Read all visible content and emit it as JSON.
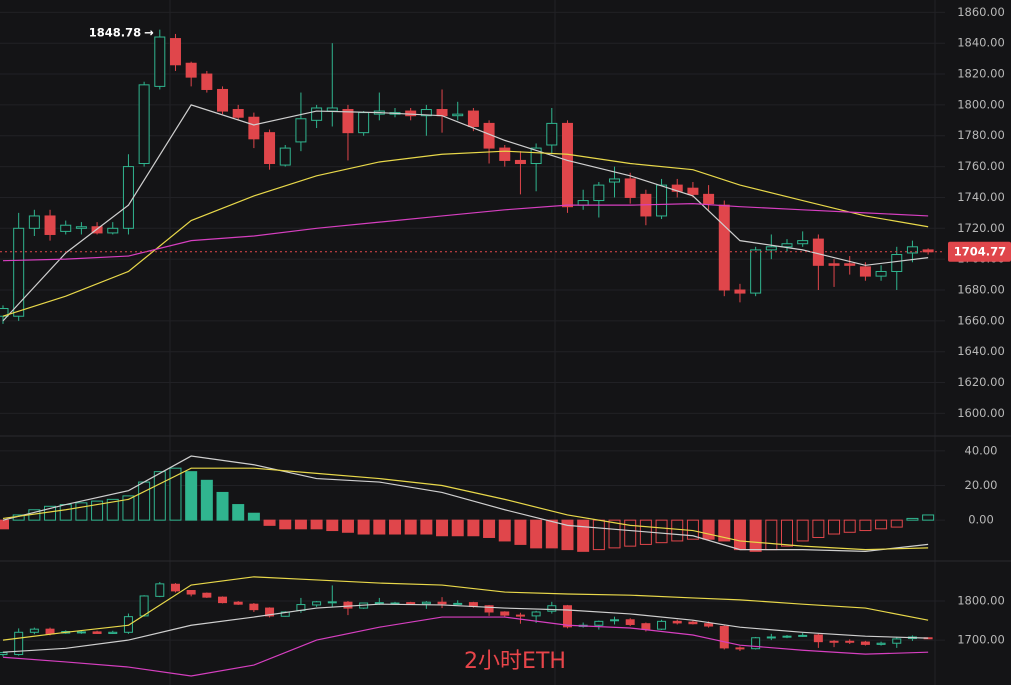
{
  "chart_data": [
    {
      "type": "candlestick",
      "title": "2小时ETH",
      "open": [
        1663,
        1663,
        1720,
        1728,
        1718,
        1720,
        1721,
        1717,
        1720,
        1762,
        1812,
        1843,
        1827,
        1820,
        1810,
        1797,
        1792,
        1782,
        1761,
        1776,
        1790,
        1796,
        1797,
        1782,
        1794,
        1794,
        1796,
        1793,
        1797,
        1793,
        1796,
        1788,
        1772,
        1764,
        1762,
        1774,
        1788,
        1735,
        1738,
        1750,
        1752,
        1742,
        1728,
        1748,
        1746,
        1742,
        1735,
        1680,
        1678,
        1706,
        1708,
        1710,
        1713,
        1697,
        1697,
        1695,
        1689,
        1692,
        1704,
        1706
      ],
      "high": [
        1670,
        1730,
        1732,
        1732,
        1725,
        1724,
        1724,
        1724,
        1768,
        1815,
        1848.78,
        1846,
        1828,
        1822,
        1812,
        1800,
        1795,
        1784,
        1774,
        1808,
        1800,
        1840,
        1800,
        1796,
        1808,
        1798,
        1798,
        1800,
        1810,
        1802,
        1798,
        1790,
        1774,
        1770,
        1775,
        1798,
        1790,
        1745,
        1750,
        1760,
        1756,
        1745,
        1752,
        1752,
        1750,
        1748,
        1738,
        1684,
        1708,
        1716,
        1713,
        1718,
        1716,
        1700,
        1702,
        1698,
        1696,
        1708,
        1712,
        1707
      ],
      "low": [
        1658,
        1660,
        1715,
        1712,
        1716,
        1716,
        1716,
        1716,
        1716,
        1760,
        1810,
        1822,
        1812,
        1808,
        1794,
        1790,
        1772,
        1758,
        1760,
        1770,
        1785,
        1786,
        1764,
        1780,
        1790,
        1792,
        1790,
        1780,
        1782,
        1790,
        1783,
        1762,
        1760,
        1742,
        1744,
        1768,
        1730,
        1732,
        1727,
        1740,
        1736,
        1722,
        1726,
        1740,
        1740,
        1732,
        1676,
        1672,
        1676,
        1700,
        1705,
        1708,
        1680,
        1682,
        1690,
        1686,
        1686,
        1680,
        1698,
        1703
      ],
      "close": [
        1668,
        1720,
        1728,
        1716,
        1722,
        1721,
        1717,
        1720,
        1760,
        1813,
        1844,
        1826,
        1818,
        1810,
        1796,
        1792,
        1778,
        1762,
        1772,
        1791,
        1798,
        1798,
        1782,
        1795,
        1796,
        1795,
        1793,
        1797,
        1793,
        1794,
        1786,
        1772,
        1764,
        1762,
        1772,
        1788,
        1734,
        1738,
        1748,
        1752,
        1740,
        1728,
        1748,
        1744,
        1742,
        1736,
        1680,
        1678,
        1706,
        1708,
        1710,
        1712,
        1696,
        1696,
        1696,
        1689,
        1692,
        1703,
        1708,
        1704.77
      ],
      "up_color": "#30b58f",
      "down_color": "#e0464b",
      "series": [
        {
          "color": "#cfcfcf",
          "x": [
            0,
            4,
            8,
            12,
            16,
            20,
            24,
            28,
            32,
            36,
            40,
            44,
            47,
            51,
            55,
            59
          ],
          "values": [
            1660,
            1704,
            1735,
            1800,
            1787,
            1796,
            1795,
            1793,
            1777,
            1764,
            1754,
            1741,
            1712,
            1706,
            1696,
            1701
          ]
        },
        {
          "color": "#e8d84a",
          "x": [
            0,
            4,
            8,
            12,
            16,
            20,
            24,
            28,
            32,
            36,
            40,
            44,
            47,
            51,
            55,
            59
          ],
          "values": [
            1663,
            1676,
            1692,
            1725,
            1741,
            1754,
            1763,
            1768,
            1770,
            1768,
            1762,
            1758,
            1748,
            1738,
            1728,
            1721
          ]
        },
        {
          "color": "#d63fc0",
          "x": [
            0,
            4,
            8,
            12,
            16,
            20,
            24,
            28,
            32,
            36,
            40,
            44,
            47,
            51,
            55,
            59
          ],
          "values": [
            1699,
            1700,
            1702,
            1712,
            1715,
            1720,
            1724,
            1728,
            1732,
            1735,
            1735,
            1736,
            1734,
            1732,
            1730,
            1728
          ]
        }
      ],
      "max_price": 1848.78,
      "last_price": 1704.77,
      "ylim": [
        1586,
        1868
      ],
      "yticks": [
        {
          "value": 1860,
          "label": "1860.00"
        },
        {
          "value": 1840,
          "label": "1840.00"
        },
        {
          "value": 1820,
          "label": "1820.00"
        },
        {
          "value": 1800,
          "label": "1800.00"
        },
        {
          "value": 1780,
          "label": "1780.00"
        },
        {
          "value": 1760,
          "label": "1760.00"
        },
        {
          "value": 1740,
          "label": "1740.00"
        },
        {
          "value": 1720,
          "label": "1720.00"
        },
        {
          "value": 1700,
          "label": "1700.00"
        },
        {
          "value": 1680,
          "label": "1680.00"
        },
        {
          "value": 1660,
          "label": "1660.00"
        },
        {
          "value": 1640,
          "label": "1640.00"
        },
        {
          "value": 1620,
          "label": "1620.00"
        },
        {
          "value": 1600,
          "label": "1600.00"
        }
      ],
      "grid": true
    },
    {
      "type": "bar",
      "values": [
        -5,
        3,
        6,
        8,
        9,
        10,
        11,
        12,
        14,
        22,
        28,
        30,
        28,
        23,
        16,
        9,
        4,
        -3,
        -5,
        -5,
        -5,
        -6,
        -7,
        -8,
        -8,
        -8,
        -8,
        -8,
        -9,
        -9,
        -9,
        -10,
        -12,
        -14,
        -16,
        -16,
        -17,
        -18,
        -17,
        -16,
        -15,
        -14,
        -13,
        -12,
        -11,
        -11,
        -12,
        -17,
        -18,
        -17,
        -15,
        -12,
        -10,
        -8,
        -7,
        -6,
        -5,
        -4,
        1,
        3
      ],
      "up_color": "#30b58f",
      "down_color": "#e0464b",
      "series": [
        {
          "color": "#cfcfcf",
          "x": [
            0,
            4,
            8,
            12,
            16,
            20,
            24,
            28,
            32,
            36,
            40,
            44,
            47,
            51,
            55,
            59
          ],
          "values": [
            0,
            9,
            17,
            37,
            32,
            24,
            22,
            16,
            6,
            -3,
            -6,
            -9,
            -17,
            -17,
            -18,
            -14
          ]
        },
        {
          "color": "#e8d84a",
          "x": [
            0,
            4,
            8,
            12,
            16,
            20,
            24,
            28,
            32,
            36,
            40,
            44,
            47,
            51,
            55,
            59
          ],
          "values": [
            1,
            6,
            12,
            30,
            30,
            27,
            24,
            20,
            12,
            3,
            -3,
            -6,
            -12,
            -15,
            -17,
            -16
          ]
        }
      ],
      "ylim": [
        -23,
        48
      ],
      "yticks": [
        {
          "value": 40,
          "label": "40.00"
        },
        {
          "value": 20,
          "label": "20.00"
        },
        {
          "value": 0,
          "label": "0.00"
        }
      ]
    },
    {
      "type": "candlestick",
      "series": [
        {
          "color": "#e8d84a",
          "x": [
            0,
            4,
            8,
            12,
            16,
            20,
            24,
            28,
            32,
            36,
            40,
            44,
            47,
            51,
            55,
            59
          ],
          "values": [
            1700,
            1720,
            1738,
            1841,
            1862,
            1854,
            1846,
            1841,
            1823,
            1818,
            1815,
            1808,
            1803,
            1792,
            1782,
            1751
          ]
        },
        {
          "color": "#cfcfcf",
          "x": [
            0,
            4,
            8,
            12,
            16,
            20,
            24,
            28,
            32,
            36,
            40,
            44,
            47,
            51,
            55,
            59
          ],
          "values": [
            1669,
            1679,
            1700,
            1738,
            1759,
            1782,
            1792,
            1790,
            1782,
            1777,
            1767,
            1751,
            1733,
            1720,
            1710,
            1705
          ]
        },
        {
          "color": "#d63fc0",
          "x": [
            0,
            4,
            8,
            12,
            16,
            20,
            24,
            28,
            32,
            36,
            40,
            44,
            47,
            51,
            55,
            59
          ],
          "values": [
            1656,
            1644,
            1631,
            1608,
            1636,
            1700,
            1733,
            1759,
            1759,
            1738,
            1731,
            1713,
            1687,
            1674,
            1664,
            1669
          ]
        }
      ],
      "ylim": [
        1585,
        1900
      ],
      "yticks": [
        {
          "value": 1800,
          "label": "1800.00"
        },
        {
          "value": 1700,
          "label": "1700.00"
        }
      ]
    }
  ]
}
